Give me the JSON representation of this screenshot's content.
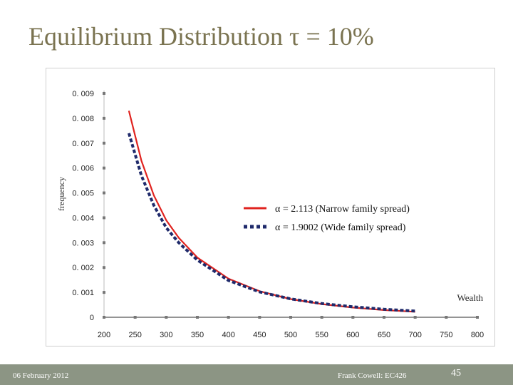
{
  "slide": {
    "title": "Equilibrium Distribution τ = 10%",
    "footer_date": "06 February 2012",
    "footer_author": "Frank Cowell: EC426",
    "page_number": "45"
  },
  "colors": {
    "title": "#7a7350",
    "footer": "#8c9584",
    "narrow": "#e0231f",
    "wide": "#1f2a6b"
  },
  "chart_data": {
    "type": "line",
    "xlabel": "Wealth",
    "ylabel": "frequency",
    "x_ticks": [
      "200",
      "250",
      "300",
      "350",
      "400",
      "450",
      "500",
      "550",
      "600",
      "650",
      "700",
      "750",
      "800"
    ],
    "y_ticks": [
      "0",
      "0.001",
      "0.002",
      "0.003",
      "0.004",
      "0.005",
      "0.006",
      "0.007",
      "0.008",
      "0.009"
    ],
    "xlim": [
      200,
      800
    ],
    "ylim": [
      0,
      0.009
    ],
    "legend_position": "right",
    "series": [
      {
        "name": "α = 2.113 (Narrow family spread)",
        "style": "solid",
        "x": [
          240,
          260,
          280,
          300,
          320,
          350,
          400,
          450,
          500,
          550,
          600,
          650,
          700
        ],
        "y": [
          0.0083,
          0.0063,
          0.0049,
          0.0039,
          0.0032,
          0.0024,
          0.00155,
          0.00105,
          0.00073,
          0.00053,
          0.00039,
          0.00029,
          0.00022
        ]
      },
      {
        "name": "α = 1.9002 (Wide family spread)",
        "style": "dotted",
        "x": [
          240,
          260,
          280,
          300,
          320,
          350,
          400,
          450,
          500,
          550,
          600,
          650,
          700
        ],
        "y": [
          0.0074,
          0.0057,
          0.0045,
          0.0036,
          0.003,
          0.0023,
          0.00148,
          0.00102,
          0.00074,
          0.00055,
          0.00042,
          0.00032,
          0.00025
        ]
      }
    ]
  }
}
